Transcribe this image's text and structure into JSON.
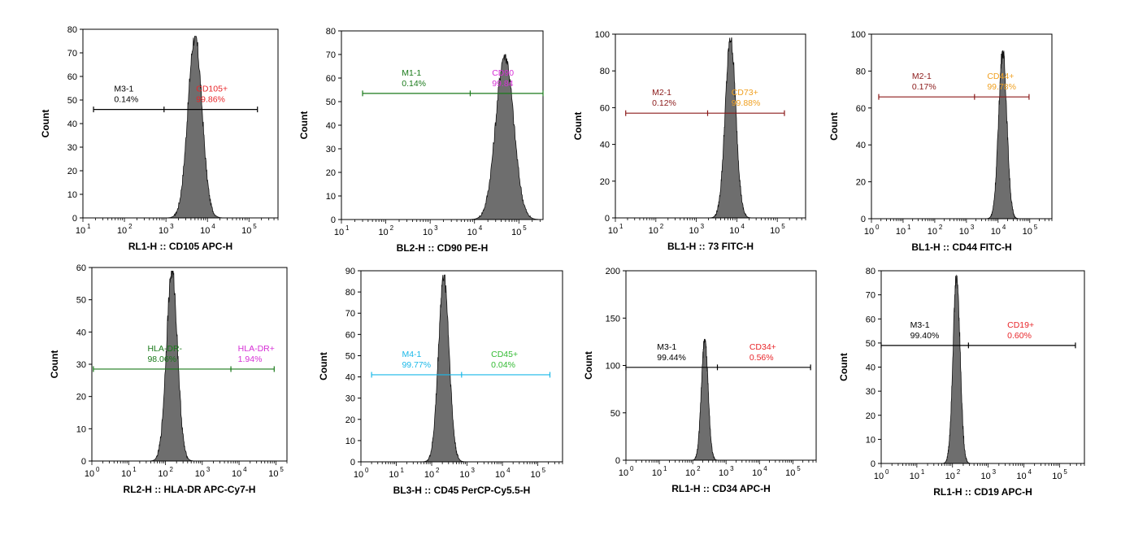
{
  "colors": {
    "histogram_fill": "#6e6e6e",
    "histogram_edge": "#111111",
    "axis": "#000000"
  },
  "chart_data": [
    {
      "type": "histogram",
      "xlabel": "RL1-H :: CD105 APC-H",
      "ylabel": "Count",
      "x_scale": "log",
      "xlim": [
        10,
        500000
      ],
      "ylim": [
        0,
        80
      ],
      "yticks": [
        0,
        10,
        20,
        30,
        40,
        50,
        60,
        70,
        80
      ],
      "xtick_exponents": [
        1,
        2,
        3,
        4,
        5
      ],
      "histogram": {
        "peak_x": 5000,
        "peak_count": 77,
        "width_decades": 0.17
      },
      "gate": {
        "from_x": 18,
        "split_x": 900,
        "to_x": 160000,
        "y": 46,
        "color": "#000000"
      },
      "regions": [
        {
          "name": "M3-1",
          "value": "0.14%",
          "color": "#000000"
        },
        {
          "name": "CD105+",
          "value": "99.86%",
          "color": "#e8262a"
        }
      ]
    },
    {
      "type": "histogram",
      "xlabel": "BL2-H :: CD90 PE-H",
      "ylabel": "Count",
      "x_scale": "log",
      "xlim": [
        10,
        350000
      ],
      "ylim": [
        0,
        80
      ],
      "yticks": [
        0,
        10,
        20,
        30,
        40,
        50,
        60,
        70,
        80
      ],
      "xtick_exponents": [
        1,
        2,
        3,
        4,
        5
      ],
      "histogram": {
        "peak_x": 48000,
        "peak_count": 70,
        "width_decades": 0.2
      },
      "gate": {
        "from_x": 30,
        "split_x": 8000,
        "to_x": 350000,
        "y": 53.5,
        "color": "#1a7a1a"
      },
      "regions": [
        {
          "name": "M1-1",
          "value": "0.14%",
          "color": "#1a7a1a"
        },
        {
          "name": "CD90",
          "value": "99.84",
          "color": "#d62fd6"
        }
      ]
    },
    {
      "type": "histogram",
      "xlabel": "BL1-H :: 73 FITC-H",
      "ylabel": "Count",
      "x_scale": "log",
      "xlim": [
        10,
        500000
      ],
      "ylim": [
        0,
        100
      ],
      "yticks": [
        0,
        20,
        40,
        60,
        80,
        100
      ],
      "xtick_exponents": [
        1,
        2,
        3,
        4,
        5
      ],
      "histogram": {
        "peak_x": 7000,
        "peak_count": 98,
        "width_decades": 0.13
      },
      "gate": {
        "from_x": 18,
        "split_x": 1900,
        "to_x": 150000,
        "y": 57,
        "color": "#8b1a1a"
      },
      "regions": [
        {
          "name": "M2-1",
          "value": "0.12%",
          "color": "#8b1a1a"
        },
        {
          "name": "CD73+",
          "value": "99.88%",
          "color": "#f0a020"
        }
      ]
    },
    {
      "type": "histogram",
      "xlabel": "BL1-H :: CD44 FITC-H",
      "ylabel": "Count",
      "x_scale": "log",
      "xlim": [
        1,
        500000
      ],
      "ylim": [
        0,
        100
      ],
      "yticks": [
        0,
        20,
        40,
        60,
        80,
        100
      ],
      "xtick_exponents": [
        0,
        1,
        2,
        3,
        4,
        5
      ],
      "histogram": {
        "peak_x": 14000,
        "peak_count": 91,
        "width_decades": 0.13
      },
      "gate": {
        "from_x": 1.7,
        "split_x": 1800,
        "to_x": 95000,
        "y": 66,
        "color": "#8b1a1a"
      },
      "regions": [
        {
          "name": "M2-1",
          "value": "0.17%",
          "color": "#8b1a1a"
        },
        {
          "name": "CD44+",
          "value": "99.78%",
          "color": "#f0a020"
        }
      ]
    },
    {
      "type": "histogram",
      "xlabel": "RL2-H :: HLA-DR APC-Cy7-H",
      "ylabel": "Count",
      "x_scale": "log",
      "xlim": [
        1,
        200000
      ],
      "ylim": [
        0,
        60
      ],
      "yticks": [
        0,
        10,
        20,
        30,
        40,
        50,
        60
      ],
      "xtick_exponents": [
        0,
        1,
        2,
        3,
        4,
        5
      ],
      "histogram": {
        "peak_x": 150,
        "peak_count": 59,
        "width_decades": 0.15
      },
      "gate": {
        "from_x": 1.1,
        "split_x": 6000,
        "to_x": 90000,
        "y": 28.5,
        "color": "#1a7a1a"
      },
      "regions": [
        {
          "name": "HLA-DR-",
          "value": "98.06%",
          "color": "#1a7a1a"
        },
        {
          "name": "HLA-DR+",
          "value": "1.94%",
          "color": "#d62fd6"
        }
      ]
    },
    {
      "type": "histogram",
      "xlabel": "BL3-H :: CD45 PerCP-Cy5.5-H",
      "ylabel": "Count",
      "x_scale": "log",
      "xlim": [
        1,
        500000
      ],
      "ylim": [
        0,
        90
      ],
      "yticks": [
        0,
        10,
        20,
        30,
        40,
        50,
        60,
        70,
        80,
        90
      ],
      "xtick_exponents": [
        0,
        1,
        2,
        3,
        4,
        5
      ],
      "histogram": {
        "peak_x": 220,
        "peak_count": 88,
        "width_decades": 0.15
      },
      "gate": {
        "from_x": 2,
        "split_x": 700,
        "to_x": 220000,
        "y": 41,
        "color": "#1ab8e8"
      },
      "regions": [
        {
          "name": "M4-1",
          "value": "99.77%",
          "color": "#1ab8e8"
        },
        {
          "name": "CD45+",
          "value": "0.04%",
          "color": "#33bb33"
        }
      ]
    },
    {
      "type": "histogram",
      "xlabel": "RL1-H :: CD34 APC-H",
      "ylabel": "Count",
      "x_scale": "log",
      "xlim": [
        1,
        500000
      ],
      "ylim": [
        0,
        200
      ],
      "yticks": [
        0,
        50,
        100,
        150,
        200
      ],
      "xtick_exponents": [
        0,
        1,
        2,
        3,
        4,
        5
      ],
      "histogram": {
        "peak_x": 230,
        "peak_count": 128,
        "width_decades": 0.1
      },
      "gate": {
        "from_x": 1,
        "split_x": 550,
        "to_x": 340000,
        "y": 98,
        "color": "#000000"
      },
      "regions": [
        {
          "name": "M3-1",
          "value": "99.44%",
          "color": "#000000"
        },
        {
          "name": "CD34+",
          "value": "0.56%",
          "color": "#e8262a"
        }
      ]
    },
    {
      "type": "histogram",
      "xlabel": "RL1-H :: CD19 APC-H",
      "ylabel": "Count",
      "x_scale": "log",
      "xlim": [
        1,
        500000
      ],
      "ylim": [
        0,
        80
      ],
      "yticks": [
        0,
        10,
        20,
        30,
        40,
        50,
        60,
        70,
        80
      ],
      "xtick_exponents": [
        0,
        1,
        2,
        3,
        4,
        5
      ],
      "histogram": {
        "peak_x": 130,
        "peak_count": 78,
        "width_decades": 0.1
      },
      "gate": {
        "from_x": 1,
        "split_x": 280,
        "to_x": 280000,
        "y": 49,
        "color": "#000000"
      },
      "regions": [
        {
          "name": "M3-1",
          "value": "99.40%",
          "color": "#000000"
        },
        {
          "name": "CD19+",
          "value": "0.60%",
          "color": "#e8262a"
        }
      ]
    }
  ]
}
